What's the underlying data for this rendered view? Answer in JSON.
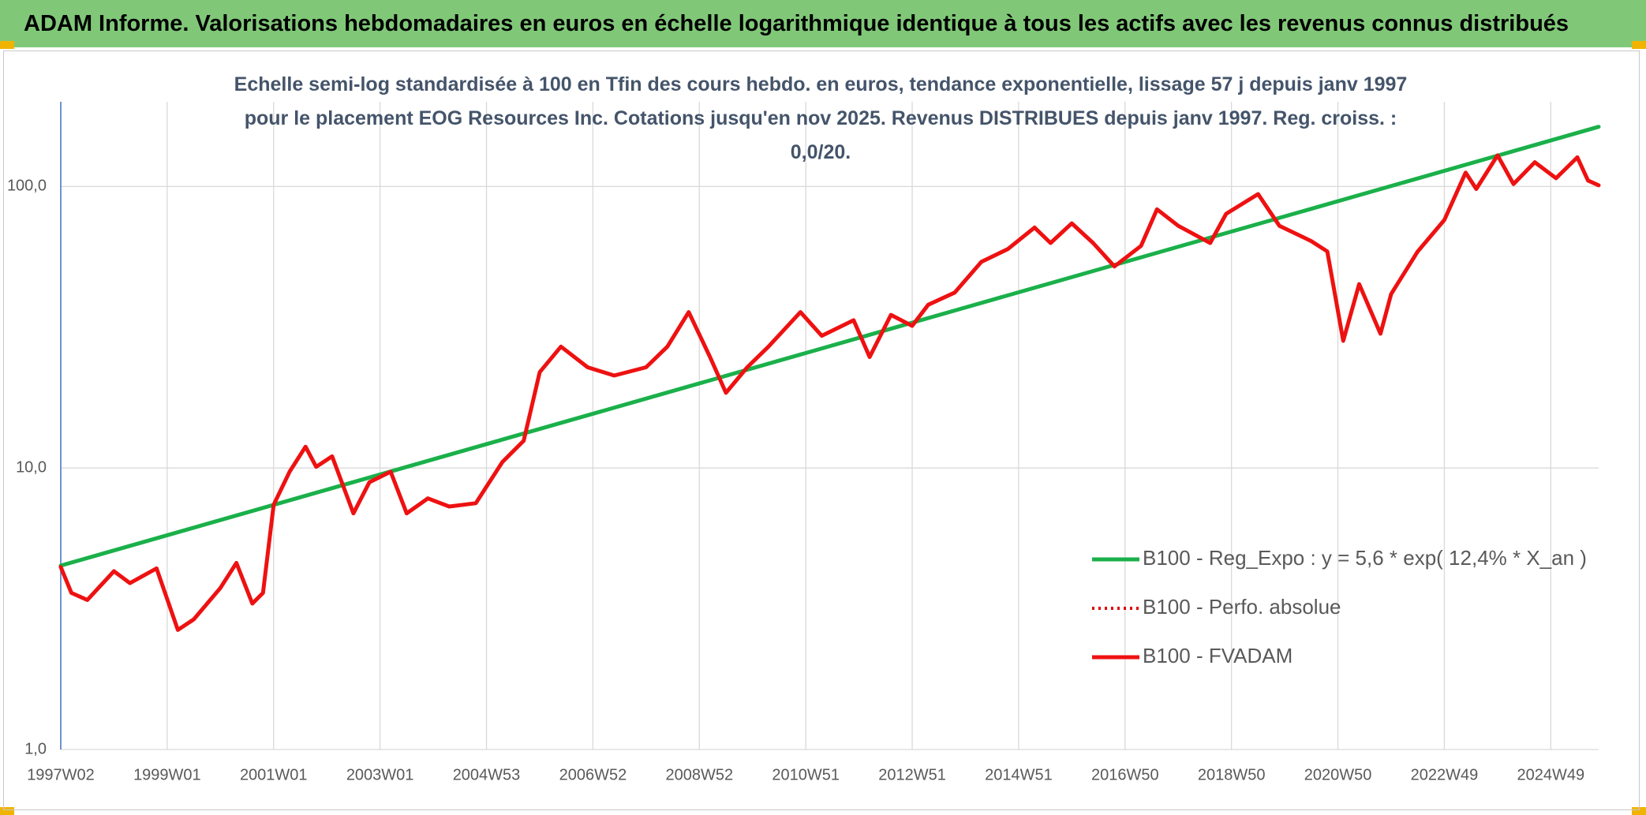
{
  "header": {
    "title": "ADAM Informe. Valorisations hebdomadaires en euros en échelle logarithmique identique à tous les actifs avec les revenus connus distribués"
  },
  "chart_data": {
    "type": "line",
    "title": "Echelle semi-log standardisée à 100 en Tfin des cours hebdo. en euros, tendance exponentielle, lissage 57 j depuis janv 1997 pour le placement EOG Resources Inc. Cotations jusqu'en nov 2025. Revenus DISTRIBUES depuis janv 1997. Reg. croiss. : 0,0/20.",
    "log_scale": true,
    "grid": true,
    "legend": "lower right",
    "xlim": [
      1997.0,
      2025.9
    ],
    "xticks": [
      {
        "value": 1997.0,
        "label": "1997W02"
      },
      {
        "value": 1999.0,
        "label": "1999W01"
      },
      {
        "value": 2001.0,
        "label": "2001W01"
      },
      {
        "value": 2003.0,
        "label": "2003W01"
      },
      {
        "value": 2005.0,
        "label": "2004W53"
      },
      {
        "value": 2007.0,
        "label": "2006W52"
      },
      {
        "value": 2009.0,
        "label": "2008W52"
      },
      {
        "value": 2011.0,
        "label": "2010W51"
      },
      {
        "value": 2013.0,
        "label": "2012W51"
      },
      {
        "value": 2015.0,
        "label": "2014W51"
      },
      {
        "value": 2017.0,
        "label": "2016W50"
      },
      {
        "value": 2019.0,
        "label": "2018W50"
      },
      {
        "value": 2021.0,
        "label": "2020W50"
      },
      {
        "value": 2023.0,
        "label": "2022W49"
      },
      {
        "value": 2025.0,
        "label": "2024W49"
      }
    ],
    "ylim": [
      1,
      200
    ],
    "yticks": [
      {
        "value": 1,
        "label": "1,0"
      },
      {
        "value": 10,
        "label": "10,0"
      },
      {
        "value": 100,
        "label": "100,0"
      }
    ],
    "x": [
      1997.0,
      1997.2,
      1997.5,
      1998.0,
      1998.3,
      1998.8,
      1999.2,
      1999.5,
      2000.0,
      2000.3,
      2000.6,
      2000.8,
      2001.0,
      2001.3,
      2001.6,
      2001.8,
      2002.1,
      2002.5,
      2002.8,
      2003.2,
      2003.5,
      2003.9,
      2004.3,
      2004.8,
      2005.3,
      2005.7,
      2006.0,
      2006.4,
      2006.9,
      2007.4,
      2008.0,
      2008.4,
      2008.8,
      2009.2,
      2009.5,
      2009.9,
      2010.3,
      2010.9,
      2011.3,
      2011.9,
      2012.2,
      2012.6,
      2013.0,
      2013.3,
      2013.8,
      2014.3,
      2014.8,
      2015.3,
      2015.6,
      2016.0,
      2016.4,
      2016.8,
      2017.3,
      2017.6,
      2018.0,
      2018.6,
      2018.9,
      2019.5,
      2019.9,
      2020.5,
      2020.8,
      2021.1,
      2021.4,
      2021.8,
      2022.0,
      2022.5,
      2023.0,
      2023.4,
      2023.6,
      2024.0,
      2024.3,
      2024.7,
      2025.1,
      2025.5,
      2025.7,
      2025.9
    ],
    "series": [
      {
        "name": "B100 - Reg_Expo : y = 5,6 * exp( 12,4% *  X_an )",
        "color": "#1ab04a",
        "style": "solid",
        "x": [
          1997.0,
          2025.9
        ],
        "values": [
          4.5,
          163
        ]
      },
      {
        "name": "B100 - Perfo. absolue",
        "color": "#e00000",
        "style": "dotted",
        "values": [
          4.45,
          3.6,
          3.4,
          4.3,
          3.9,
          4.4,
          2.66,
          2.9,
          3.75,
          4.6,
          3.3,
          3.6,
          7.4,
          9.7,
          11.9,
          10.1,
          11,
          6.9,
          8.9,
          9.7,
          6.9,
          7.8,
          7.3,
          7.5,
          10.5,
          12.5,
          21.9,
          27,
          22.8,
          21.3,
          22.8,
          27,
          35.8,
          24.8,
          18.5,
          22.8,
          27,
          35.8,
          29.5,
          33.5,
          24.8,
          35,
          32,
          38,
          42,
          54,
          60,
          71.5,
          63,
          74,
          63,
          52,
          61.5,
          83,
          72.5,
          63,
          80,
          94,
          72.5,
          64,
          58.8,
          28.3,
          45,
          30,
          41.5,
          58.8,
          76,
          112,
          98,
          129,
          102,
          122,
          107,
          127,
          105,
          101
        ]
      },
      {
        "name": "B100 - FVADAM",
        "color": "#ee1111",
        "style": "solid",
        "values": [
          4.45,
          3.6,
          3.4,
          4.3,
          3.9,
          4.4,
          2.66,
          2.9,
          3.75,
          4.6,
          3.3,
          3.6,
          7.4,
          9.7,
          11.9,
          10.1,
          11,
          6.9,
          8.9,
          9.7,
          6.9,
          7.8,
          7.3,
          7.5,
          10.5,
          12.5,
          21.9,
          27,
          22.8,
          21.3,
          22.8,
          27,
          35.8,
          24.8,
          18.5,
          22.8,
          27,
          35.8,
          29.5,
          33.5,
          24.8,
          35,
          32,
          38,
          42,
          54,
          60,
          71.5,
          63,
          74,
          63,
          52,
          61.5,
          83,
          72.5,
          63,
          80,
          94,
          72.5,
          64,
          58.8,
          28.3,
          45,
          30,
          41.5,
          58.8,
          76,
          112,
          98,
          129,
          102,
          122,
          107,
          127,
          105,
          101
        ]
      }
    ]
  }
}
